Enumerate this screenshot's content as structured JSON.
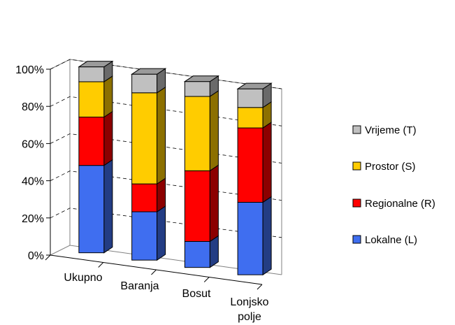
{
  "chart_data": {
    "type": "bar",
    "stacked": true,
    "percent": true,
    "three_d": true,
    "categories": [
      "Ukupno",
      "Baranja",
      "Bosut",
      "Lonjsko polje"
    ],
    "series": [
      {
        "name": "Lokalne (L)",
        "color": "#3f6ef0",
        "values": [
          47,
          26,
          14,
          39
        ]
      },
      {
        "name": "Regionalne (R)",
        "color": "#ff0000",
        "values": [
          26,
          15,
          38,
          40
        ]
      },
      {
        "name": "Prostor (S)",
        "color": "#ffcc00",
        "values": [
          19,
          49,
          40,
          11
        ]
      },
      {
        "name": "Vrijeme (T)",
        "color": "#c0c0c0",
        "values": [
          8,
          10,
          8,
          10
        ]
      }
    ],
    "y_ticks": [
      "0%",
      "20%",
      "40%",
      "60%",
      "80%",
      "100%"
    ],
    "ylim": [
      0,
      100
    ],
    "grid": true,
    "legend_position": "right",
    "legend_order": [
      "Vrijeme (T)",
      "Prostor (S)",
      "Regionalne (R)",
      "Lokalne (L)"
    ]
  }
}
